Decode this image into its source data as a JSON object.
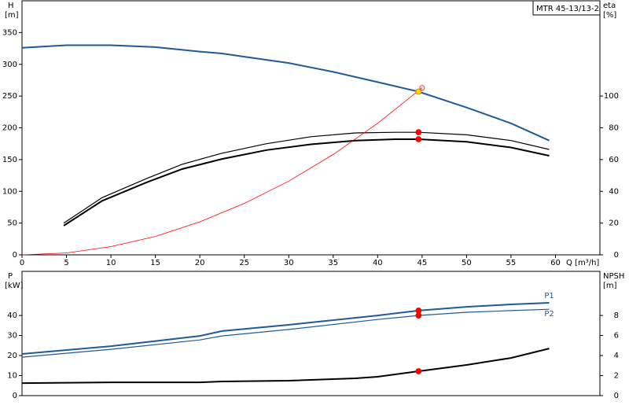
{
  "chart_data": [
    {
      "type": "line",
      "title": "MTR 45-13/13-2",
      "y_label": "H",
      "y_unit": "[m]",
      "y2_label": "eta",
      "y2_unit": "[%]",
      "x_label": "Q [m³/h]",
      "xlim": [
        0,
        65
      ],
      "xticks": [
        0,
        5,
        10,
        15,
        20,
        25,
        30,
        35,
        40,
        45,
        50,
        55,
        60
      ],
      "ylim": [
        0,
        400
      ],
      "yticks": [
        0,
        50,
        100,
        150,
        200,
        250,
        300,
        350
      ],
      "y2lim": [
        0,
        160
      ],
      "y2ticks": [
        0,
        20,
        40,
        60,
        80,
        100
      ],
      "series": [
        {
          "color": "#1f5a99",
          "width": 2,
          "x": [
            0,
            5,
            10,
            15,
            20,
            22.5,
            25,
            30,
            35,
            40,
            44.6,
            50,
            55,
            59.3
          ],
          "values": [
            326,
            330,
            330,
            327,
            320,
            317,
            312,
            302,
            288,
            272,
            257,
            232,
            207,
            180
          ]
        },
        {
          "color": "#000000",
          "width": 1.2,
          "axis": "y2",
          "x": [
            4.7,
            9,
            14,
            18,
            22.5,
            27.5,
            32.5,
            37.5,
            42,
            44.6,
            50,
            55,
            59.3
          ],
          "values": [
            20,
            36,
            48,
            57,
            64,
            70,
            74.4,
            76.8,
            77.2,
            77.2,
            75.6,
            72,
            66.4
          ]
        },
        {
          "color": "#000000",
          "width": 2,
          "axis": "y2",
          "x": [
            4.7,
            9,
            14,
            18,
            22.5,
            27.5,
            32.5,
            37.5,
            42,
            44.6,
            50,
            55,
            59.3
          ],
          "values": [
            18.4,
            34,
            45.6,
            54,
            60.4,
            66,
            69.6,
            72,
            72.8,
            72.8,
            71.2,
            67.6,
            62.4
          ]
        },
        {
          "color": "#ff0000",
          "width": 0.8,
          "x": [
            0,
            5,
            10,
            15,
            20,
            25,
            30,
            35,
            40,
            45
          ],
          "values": [
            0,
            3,
            13,
            29,
            52,
            81,
            116,
            158,
            207,
            263
          ]
        }
      ],
      "markers": [
        {
          "x": 44.6,
          "y": 257,
          "color": "#ffd700"
        },
        {
          "x": 45,
          "y": 263,
          "color": "#ff0000",
          "open": true
        },
        {
          "x": 44.6,
          "y": 77.2,
          "axis": "y2",
          "color": "#ff0000"
        },
        {
          "x": 44.6,
          "y": 72.8,
          "axis": "y2",
          "color": "#ff0000"
        }
      ]
    },
    {
      "type": "line",
      "y_label": "P",
      "y_unit": "[kW]",
      "y2_label": "NPSH",
      "y2_unit": "[m]",
      "xlim": [
        0,
        65
      ],
      "ylim": [
        0,
        62
      ],
      "yticks": [
        0,
        10,
        20,
        30,
        40
      ],
      "y2lim": [
        0,
        12.4
      ],
      "y2ticks": [
        0,
        2,
        4,
        6,
        8
      ],
      "series": [
        {
          "name": "P1",
          "color": "#1f5a99",
          "width": 2,
          "x": [
            0,
            10,
            20,
            22.5,
            30,
            40,
            44.6,
            50,
            55,
            59.3
          ],
          "values": [
            20.8,
            24.7,
            29.8,
            32.2,
            35.3,
            40,
            42.4,
            44.3,
            45.5,
            46.3
          ]
        },
        {
          "name": "P2",
          "color": "#1f5a99",
          "width": 1.2,
          "x": [
            0,
            10,
            20,
            22.5,
            30,
            40,
            44.6,
            50,
            55,
            59.3
          ],
          "values": [
            19.2,
            23.1,
            27.8,
            29.8,
            33,
            38,
            40,
            41.6,
            42.4,
            43.1
          ]
        },
        {
          "color": "#000000",
          "width": 2,
          "axis": "y2",
          "x": [
            0,
            10,
            20,
            22.5,
            30,
            37.5,
            40,
            44.6,
            50,
            55,
            59.3
          ],
          "values": [
            1.25,
            1.33,
            1.33,
            1.41,
            1.49,
            1.73,
            1.88,
            2.43,
            3.06,
            3.76,
            4.7
          ]
        }
      ],
      "markers": [
        {
          "x": 44.6,
          "y": 42.4,
          "color": "#ff0000"
        },
        {
          "x": 44.6,
          "y": 40,
          "color": "#ff0000"
        },
        {
          "x": 44.6,
          "y": 2.43,
          "axis": "y2",
          "color": "#ff0000"
        }
      ]
    }
  ]
}
